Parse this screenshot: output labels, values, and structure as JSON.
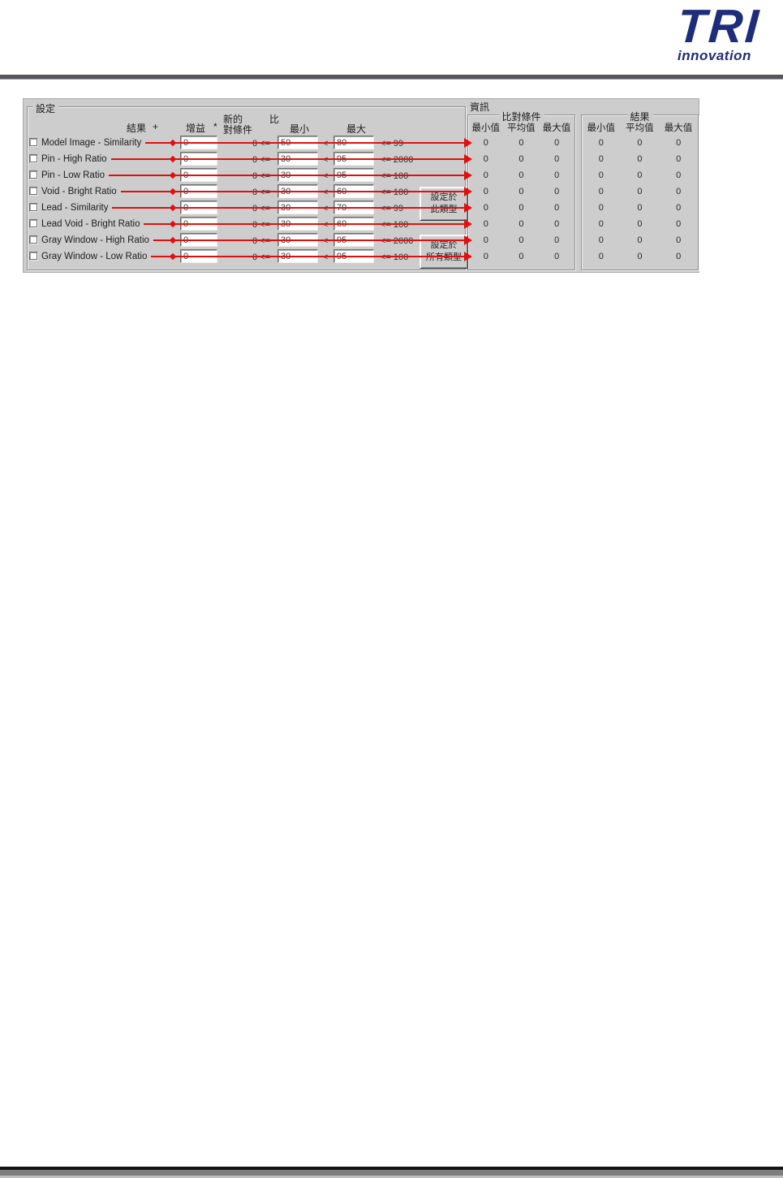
{
  "logo": {
    "brand": "TRI",
    "tagline": "innovation",
    "color": "#1d2d7a"
  },
  "dialog": {
    "settings_group": {
      "title": "設定",
      "columns": {
        "result": "結果",
        "result_op": "+",
        "gain": "增益",
        "gain_op": "*",
        "new_cond_line1": "新的",
        "new_cond_line2": "對條件",
        "ratio": "比",
        "min": "最小",
        "max": "最大"
      },
      "rows": [
        {
          "label": "Model Image - Similarity",
          "gain": "0",
          "lower_text": "0 <=",
          "min": "50",
          "mid_op": "<",
          "max": "80",
          "upper_text": "<= 99"
        },
        {
          "label": "Pin - High Ratio",
          "gain": "0",
          "lower_text": "0 <=",
          "min": "30",
          "mid_op": "<",
          "max": "95",
          "upper_text": "<= 2000"
        },
        {
          "label": "Pin - Low Ratio",
          "gain": "0",
          "lower_text": "0 <=",
          "min": "30",
          "mid_op": "<",
          "max": "95",
          "upper_text": "<= 100"
        },
        {
          "label": "Void - Bright Ratio",
          "gain": "0",
          "lower_text": "0 <=",
          "min": "30",
          "mid_op": "<",
          "max": "60",
          "upper_text": "<= 100"
        },
        {
          "label": "Lead - Similarity",
          "gain": "0",
          "lower_text": "0 <=",
          "min": "30",
          "mid_op": "<",
          "max": "70",
          "upper_text": "<= 99"
        },
        {
          "label": "Lead Void - Bright Ratio",
          "gain": "0",
          "lower_text": "0 <=",
          "min": "30",
          "mid_op": "<",
          "max": "60",
          "upper_text": "<= 100"
        },
        {
          "label": "Gray Window - High Ratio",
          "gain": "0",
          "lower_text": "0 <=",
          "min": "30",
          "mid_op": "<",
          "max": "95",
          "upper_text": "<= 2000"
        },
        {
          "label": "Gray Window - Low Ratio",
          "gain": "0",
          "lower_text": "0 <=",
          "min": "30",
          "mid_op": "<",
          "max": "95",
          "upper_text": "<= 100"
        }
      ],
      "buttons": [
        {
          "line1": "設定於",
          "line2": "此類型"
        },
        {
          "line1": "設定於",
          "line2": "所有類型"
        }
      ]
    },
    "info_group": {
      "title": "資訊",
      "subgroups": [
        {
          "title": "比對條件",
          "columns": [
            "最小值",
            "平均值",
            "最大值"
          ]
        },
        {
          "title": "結果",
          "columns": [
            "最小值",
            "平均值",
            "最大值"
          ]
        }
      ],
      "values": [
        [
          "0",
          "0",
          "0",
          "0",
          "0",
          "0"
        ],
        [
          "0",
          "0",
          "0",
          "0",
          "0",
          "0"
        ],
        [
          "0",
          "0",
          "0",
          "0",
          "0",
          "0"
        ],
        [
          "0",
          "0",
          "0",
          "0",
          "0",
          "0"
        ],
        [
          "0",
          "0",
          "0",
          "0",
          "0",
          "0"
        ],
        [
          "0",
          "0",
          "0",
          "0",
          "0",
          "0"
        ],
        [
          "0",
          "0",
          "0",
          "0",
          "0",
          "0"
        ],
        [
          "0",
          "0",
          "0",
          "0",
          "0",
          "0"
        ]
      ]
    }
  }
}
